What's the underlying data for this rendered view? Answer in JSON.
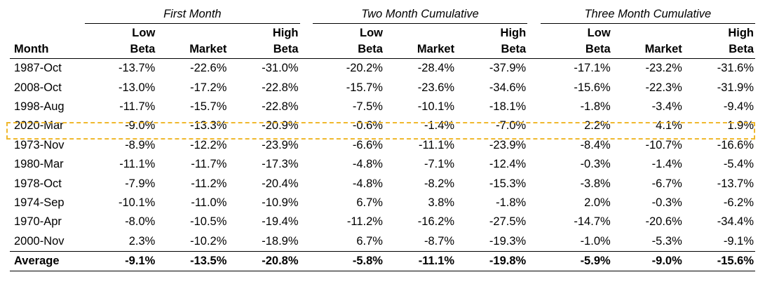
{
  "groups": {
    "first": "First Month",
    "two": "Two Month Cumulative",
    "three": "Three Month Cumulative"
  },
  "headers": {
    "month": "Month",
    "low_top": "Low",
    "low_bottom": "Beta",
    "market": "Market",
    "high_top": "High",
    "high_bottom": "Beta"
  },
  "highlight_color": "#f0b82d",
  "rows": [
    {
      "month": "1987-Oct",
      "v": [
        "-13.7%",
        "-22.6%",
        "-31.0%",
        "-20.2%",
        "-28.4%",
        "-37.9%",
        "-17.1%",
        "-23.2%",
        "-31.6%"
      ]
    },
    {
      "month": "2008-Oct",
      "v": [
        "-13.0%",
        "-17.2%",
        "-22.8%",
        "-15.7%",
        "-23.6%",
        "-34.6%",
        "-15.6%",
        "-22.3%",
        "-31.9%"
      ]
    },
    {
      "month": "1998-Aug",
      "v": [
        "-11.7%",
        "-15.7%",
        "-22.8%",
        "-7.5%",
        "-10.1%",
        "-18.1%",
        "-1.8%",
        "-3.4%",
        "-9.4%"
      ]
    },
    {
      "month": "2020-Mar",
      "v": [
        "-9.0%",
        "-13.3%",
        "-20.9%",
        "-0.6%",
        "-1.4%",
        "-7.0%",
        "2.2%",
        "4.1%",
        "1.9%"
      ],
      "highlighted": true
    },
    {
      "month": "1973-Nov",
      "v": [
        "-8.9%",
        "-12.2%",
        "-23.9%",
        "-6.6%",
        "-11.1%",
        "-23.9%",
        "-8.4%",
        "-10.7%",
        "-16.6%"
      ]
    },
    {
      "month": "1980-Mar",
      "v": [
        "-11.1%",
        "-11.7%",
        "-17.3%",
        "-4.8%",
        "-7.1%",
        "-12.4%",
        "-0.3%",
        "-1.4%",
        "-5.4%"
      ]
    },
    {
      "month": "1978-Oct",
      "v": [
        "-7.9%",
        "-11.2%",
        "-20.4%",
        "-4.8%",
        "-8.2%",
        "-15.3%",
        "-3.8%",
        "-6.7%",
        "-13.7%"
      ]
    },
    {
      "month": "1974-Sep",
      "v": [
        "-10.1%",
        "-11.0%",
        "-10.9%",
        "6.7%",
        "3.8%",
        "-1.8%",
        "2.0%",
        "-0.3%",
        "-6.2%"
      ]
    },
    {
      "month": "1970-Apr",
      "v": [
        "-8.0%",
        "-10.5%",
        "-19.4%",
        "-11.2%",
        "-16.2%",
        "-27.5%",
        "-14.7%",
        "-20.6%",
        "-34.4%"
      ]
    },
    {
      "month": "2000-Nov",
      "v": [
        "2.3%",
        "-10.2%",
        "-18.9%",
        "6.7%",
        "-8.7%",
        "-19.3%",
        "-1.0%",
        "-5.3%",
        "-9.1%"
      ]
    }
  ],
  "average": {
    "month": "Average",
    "v": [
      "-9.1%",
      "-13.5%",
      "-20.8%",
      "-5.8%",
      "-11.1%",
      "-19.8%",
      "-5.9%",
      "-9.0%",
      "-15.6%"
    ]
  }
}
